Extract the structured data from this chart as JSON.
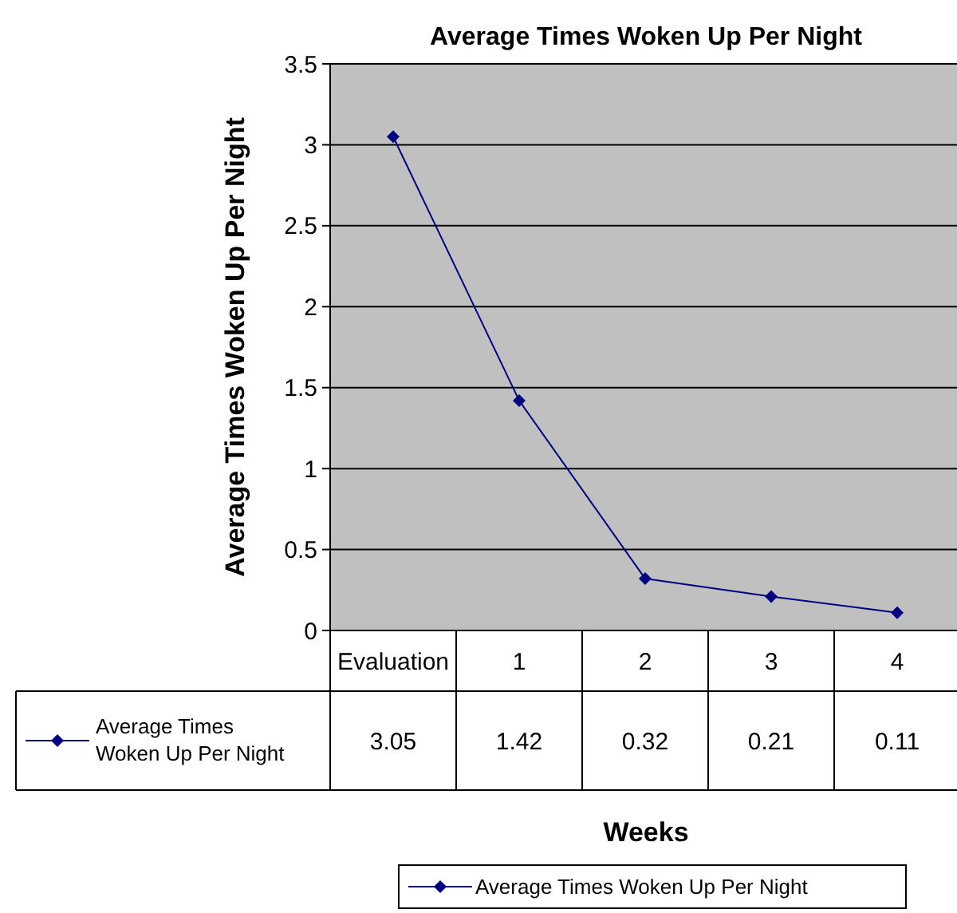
{
  "chart_data": {
    "type": "line",
    "title": "Average Times Woken Up Per Night",
    "annotations": [
      "Weeks"
    ],
    "ylabel": "Average Times Woken Up Per Night",
    "categories": [
      "Evaluation",
      "1",
      "2",
      "3",
      "4"
    ],
    "series": [
      {
        "name": "Average Times Woken Up Per Night",
        "color": "#000080",
        "values": [
          3.05,
          1.42,
          0.32,
          0.21,
          0.11
        ]
      }
    ],
    "ylim": [
      0,
      3.5
    ],
    "yticks": [
      0,
      0.5,
      1,
      1.5,
      2,
      2.5,
      3,
      3.5
    ],
    "grid": "y",
    "marker": "diamond",
    "line_style": "solid",
    "data_labels": true,
    "legend": "bottom"
  }
}
